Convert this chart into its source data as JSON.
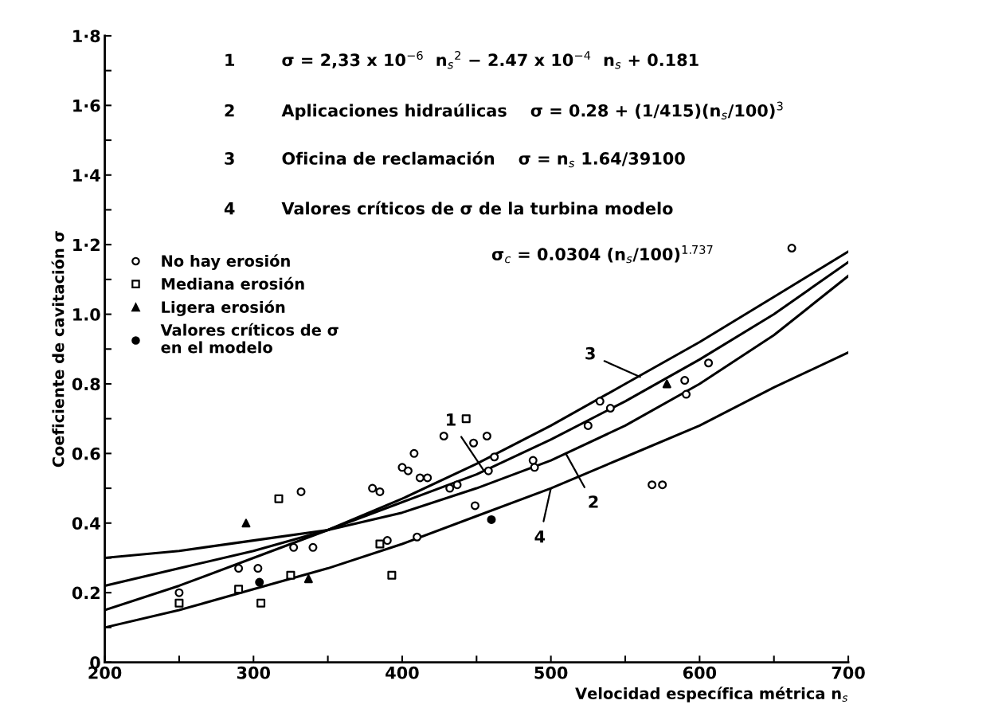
{
  "chart_data": {
    "type": "line",
    "xlabel": "Velocidad específica métrica n$_{s}$",
    "ylabel": "Coeficiente de cavitación σ",
    "xlim": [
      200,
      700
    ],
    "ylim": [
      0,
      1.8
    ],
    "xticks": [
      200,
      {
        "value": 250,
        "label": null
      },
      300,
      {
        "value": 350,
        "label": null
      },
      400,
      {
        "value": 450,
        "label": null
      },
      500,
      {
        "value": 550,
        "label": null
      },
      600,
      {
        "value": 650,
        "label": null
      },
      700
    ],
    "yticks": [
      {
        "value": 0,
        "label": "0"
      },
      {
        "value": 0.1,
        "label": null
      },
      {
        "value": 0.2,
        "label": "0.2"
      },
      {
        "value": 0.3,
        "label": null
      },
      {
        "value": 0.4,
        "label": "0.4"
      },
      {
        "value": 0.5,
        "label": null
      },
      {
        "value": 0.6,
        "label": "0.6"
      },
      {
        "value": 0.7,
        "label": null
      },
      {
        "value": 0.8,
        "label": "0.8"
      },
      {
        "value": 0.9,
        "label": null
      },
      {
        "value": 1.0,
        "label": "1.0"
      },
      {
        "value": 1.1,
        "label": null
      },
      {
        "value": 1.2,
        "label": "1·2"
      },
      {
        "value": 1.3,
        "label": null
      },
      {
        "value": 1.4,
        "label": "1·4"
      },
      {
        "value": 1.5,
        "label": null
      },
      {
        "value": 1.6,
        "label": "1·6"
      },
      {
        "value": 1.7,
        "label": null
      },
      {
        "value": 1.8,
        "label": "1·8"
      }
    ],
    "grid": false,
    "legend": "center left",
    "series": [
      {
        "color": "#000000",
        "x": [
          200,
          250,
          300,
          350,
          400,
          450,
          500,
          550,
          600,
          650,
          700
        ],
        "values": [
          0.22,
          0.27,
          0.32,
          0.38,
          0.46,
          0.54,
          0.64,
          0.75,
          0.87,
          1.0,
          1.15
        ]
      },
      {
        "color": "#000000",
        "x": [
          200,
          250,
          300,
          350,
          400,
          450,
          500,
          550,
          600,
          650,
          700
        ],
        "values": [
          0.3,
          0.32,
          0.35,
          0.38,
          0.43,
          0.5,
          0.58,
          0.68,
          0.8,
          0.94,
          1.11
        ]
      },
      {
        "color": "#000000",
        "x": [
          200,
          250,
          300,
          350,
          400,
          450,
          500,
          550,
          600,
          650,
          700
        ],
        "values": [
          0.15,
          0.22,
          0.3,
          0.38,
          0.47,
          0.57,
          0.68,
          0.8,
          0.92,
          1.05,
          1.18
        ]
      },
      {
        "color": "#000000",
        "x": [
          200,
          250,
          300,
          350,
          400,
          450,
          500,
          550,
          600,
          650,
          700
        ],
        "values": [
          0.1,
          0.15,
          0.21,
          0.27,
          0.34,
          0.42,
          0.5,
          0.59,
          0.68,
          0.79,
          0.89
        ]
      },
      {
        "type": "scatter",
        "name": "No hay erosión",
        "color": "#ffffff",
        "marker": "circle",
        "x": [
          250,
          290,
          303,
          327,
          332,
          340,
          380,
          385,
          390,
          400,
          404,
          408,
          410,
          412,
          417,
          428,
          432,
          437,
          448,
          449,
          457,
          458,
          462,
          488,
          489,
          525,
          533,
          540,
          568,
          575,
          590,
          591,
          606,
          662
        ],
        "values": [
          0.2,
          0.27,
          0.27,
          0.33,
          0.49,
          0.33,
          0.5,
          0.49,
          0.35,
          0.56,
          0.55,
          0.6,
          0.36,
          0.53,
          0.53,
          0.65,
          0.5,
          0.51,
          0.63,
          0.45,
          0.65,
          0.55,
          0.59,
          0.58,
          0.56,
          0.68,
          0.75,
          0.73,
          0.51,
          0.51,
          0.81,
          0.77,
          0.86,
          1.19
        ]
      },
      {
        "type": "scatter",
        "name": "Mediana erosión",
        "color": "#ffffff",
        "marker": "square",
        "x": [
          250,
          290,
          305,
          317,
          325,
          385,
          393,
          443
        ],
        "values": [
          0.17,
          0.21,
          0.17,
          0.47,
          0.25,
          0.34,
          0.25,
          0.7
        ]
      },
      {
        "type": "scatter",
        "name": "Ligera erosión",
        "color": "#000000",
        "marker": "triangle",
        "x": [
          295,
          337,
          578
        ],
        "values": [
          0.4,
          0.24,
          0.8
        ]
      },
      {
        "type": "scatter",
        "name": "Valores críticos de σ\nen el modelo",
        "color": "#000000",
        "marker": "circle",
        "x": [
          304,
          460
        ],
        "values": [
          0.23,
          0.41
        ]
      }
    ],
    "annotations": [
      "1        σ = 2,33 x 10$^{−6}$  n$_{s}$$^{2}$ − 2.47 x 10$^{−4}$  n$_{s}$ + 0.181",
      "2        Aplicaciones hidraúlicas    σ = 0.28 + (1/415)(n$_{s}$/100)$^{3}$",
      "3        Oficina de reclamación    σ = n$_{s}$ 1.64/39100",
      "4        Valores críticos de σ de la turbina modelo",
      "σ$_{c}$ = 0.0304 (n$_{s}$/100)$^{1.737}$",
      {
        "text": "3",
        "x": 560,
        "y": 0.82
      },
      {
        "text": "1",
        "x": 455,
        "y": 0.55
      },
      {
        "text": "2",
        "x": 510,
        "y": 0.6
      },
      {
        "text": "4",
        "x": 500,
        "y": 0.5
      }
    ]
  }
}
